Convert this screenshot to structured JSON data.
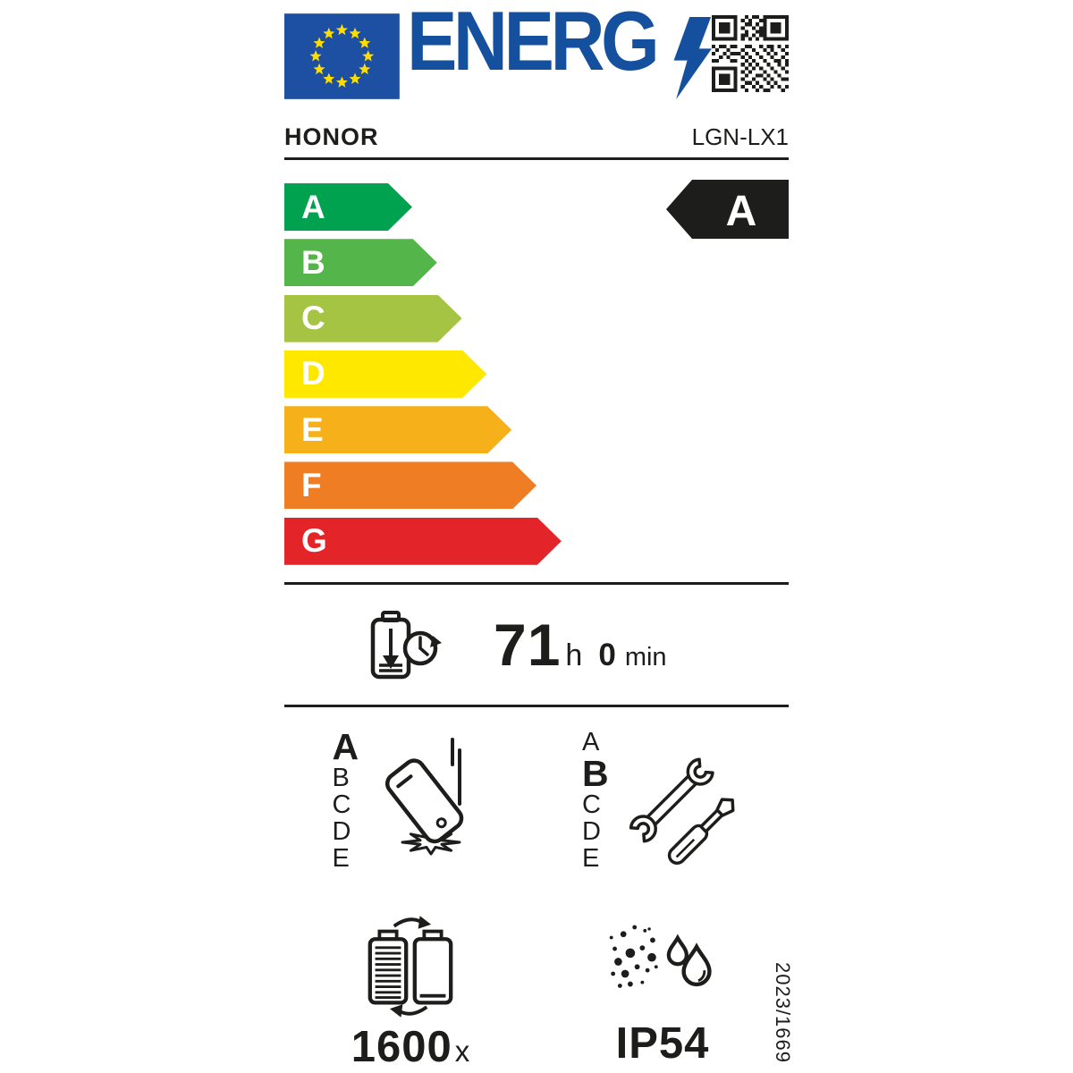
{
  "header": {
    "logo_text": "ENERG",
    "brand": "HONOR",
    "model": "LGN-LX1"
  },
  "colors": {
    "eu_blue": "#14509e",
    "flag_blue": "#1d50a2",
    "star_yellow": "#ffdd00",
    "ink": "#1d1d1b"
  },
  "energy_scale": {
    "classes": [
      {
        "label": "A",
        "color": "#00a24f"
      },
      {
        "label": "B",
        "color": "#54b64a"
      },
      {
        "label": "C",
        "color": "#a5c444"
      },
      {
        "label": "D",
        "color": "#ffe800"
      },
      {
        "label": "E",
        "color": "#f6b019"
      },
      {
        "label": "F",
        "color": "#ef7d23"
      },
      {
        "label": "G",
        "color": "#e32529"
      }
    ],
    "rating": "A",
    "rating_bg": "#1d1d1b"
  },
  "battery_endurance": {
    "hours": "71",
    "hours_unit": "h",
    "minutes": "0",
    "minutes_unit": "min"
  },
  "drop_reliability": {
    "scale": [
      "A",
      "B",
      "C",
      "D",
      "E"
    ],
    "rating": "A"
  },
  "repairability": {
    "scale": [
      "A",
      "B",
      "C",
      "D",
      "E"
    ],
    "rating": "B"
  },
  "battery_cycles": {
    "value": "1600",
    "unit": "x"
  },
  "ingress_protection": {
    "rating": "IP54"
  },
  "regulation_number": "2023/1669",
  "icons": {
    "flag": "eu-flag",
    "logo_bolt": "lightning-bolt",
    "qr": "qr-code",
    "endurance": "battery-discharge-clock",
    "reliability": "falling-phone",
    "repairability": "wrench-screwdriver",
    "cycles": "battery-cycle",
    "ip": "dust-and-water"
  }
}
